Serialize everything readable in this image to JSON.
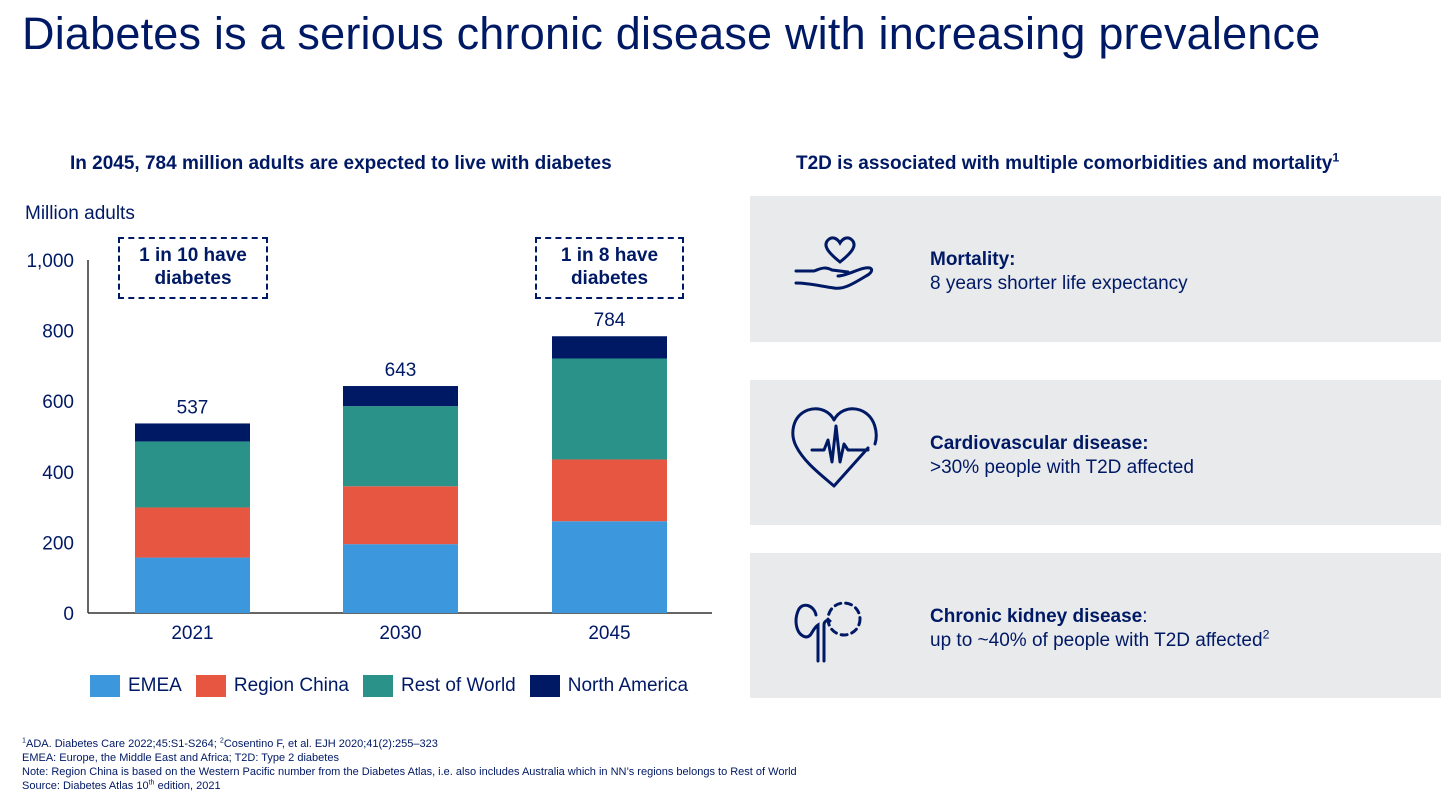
{
  "title": "Diabetes is a serious chronic disease with increasing prevalence",
  "left_subtitle": "In 2045, 784 million adults are expected to live with diabetes",
  "right_subtitle": "T2D is associated with multiple comorbidities and mortality",
  "right_subtitle_sup": "1",
  "callouts": [
    {
      "line1": "1 in 10 have",
      "line2": "diabetes"
    },
    {
      "line1": "1 in 8 have",
      "line2": "diabetes"
    }
  ],
  "chart_data": {
    "type": "bar",
    "stacked": true,
    "title": "In 2045, 784 million adults are expected to live with diabetes",
    "ylabel": "Million adults",
    "xlabel": "",
    "ylim": [
      0,
      1000
    ],
    "yticks": [
      "0",
      "200",
      "400",
      "600",
      "800",
      "1,000"
    ],
    "ytick_values": [
      0,
      200,
      400,
      600,
      800,
      1000
    ],
    "categories": [
      "2021",
      "2030",
      "2045"
    ],
    "totals": [
      "537",
      "643",
      "784"
    ],
    "series": [
      {
        "name": "EMEA",
        "color": "#3d97dc",
        "values": [
          157,
          195,
          260
        ]
      },
      {
        "name": "Region China",
        "color": "#e65640",
        "values": [
          142,
          164,
          175
        ]
      },
      {
        "name": "Rest of World",
        "color": "#2a9289",
        "values": [
          187,
          227,
          286
        ]
      },
      {
        "name": "North America",
        "color": "#001965",
        "values": [
          51,
          57,
          63
        ]
      }
    ],
    "legend_position": "bottom"
  },
  "cards": [
    {
      "icon": "heart-in-hand-icon",
      "title": "Mortality:",
      "text": "8 years shorter life expectancy",
      "sup": ""
    },
    {
      "icon": "heart-pulse-icon",
      "title": "Cardiovascular disease:",
      "text": ">30% people with T2D affected",
      "sup": ""
    },
    {
      "icon": "kidney-icon",
      "title": "Chronic kidney disease",
      "title_suffix": ":",
      "text": "up to ~40% of people with T2D affected",
      "sup": "2"
    }
  ],
  "footnotes": {
    "f1_sup": "1",
    "f1": "ADA. Diabetes Care 2022;45:S1-S264; ",
    "f2_sup": "2",
    "f2": "Cosentino F, et al. EJH 2020;41(2):255–323",
    "line2": "EMEA: Europe, the Middle East and Africa; T2D: Type 2 diabetes",
    "line3": "Note: Region China is based on the Western Pacific number from the Diabetes Atlas, i.e. also includes Australia which in NN’s regions belongs to Rest of World",
    "line4a": "Source: Diabetes Atlas 10",
    "line4_sup": "th",
    "line4b": " edition, 2021"
  }
}
